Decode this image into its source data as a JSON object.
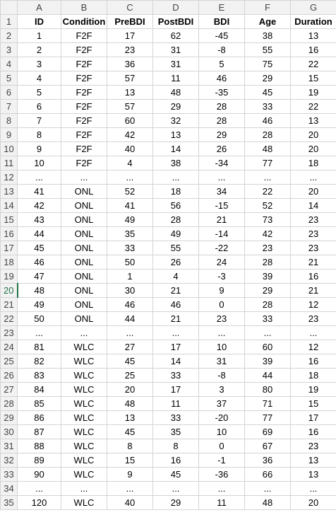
{
  "columns": [
    "A",
    "B",
    "C",
    "D",
    "E",
    "F",
    "G"
  ],
  "selected_row": "20",
  "rows": [
    {
      "num": "1",
      "cells": [
        "ID",
        "Condition",
        "PreBDI",
        "PostBDI",
        "BDI",
        "Age",
        "Duration"
      ]
    },
    {
      "num": "2",
      "cells": [
        "1",
        "F2F",
        "17",
        "62",
        "-45",
        "38",
        "13"
      ]
    },
    {
      "num": "3",
      "cells": [
        "2",
        "F2F",
        "23",
        "31",
        "-8",
        "55",
        "16"
      ]
    },
    {
      "num": "4",
      "cells": [
        "3",
        "F2F",
        "36",
        "31",
        "5",
        "75",
        "22"
      ]
    },
    {
      "num": "5",
      "cells": [
        "4",
        "F2F",
        "57",
        "11",
        "46",
        "29",
        "15"
      ]
    },
    {
      "num": "6",
      "cells": [
        "5",
        "F2F",
        "13",
        "48",
        "-35",
        "45",
        "19"
      ]
    },
    {
      "num": "7",
      "cells": [
        "6",
        "F2F",
        "57",
        "29",
        "28",
        "33",
        "22"
      ]
    },
    {
      "num": "8",
      "cells": [
        "7",
        "F2F",
        "60",
        "32",
        "28",
        "46",
        "13"
      ]
    },
    {
      "num": "9",
      "cells": [
        "8",
        "F2F",
        "42",
        "13",
        "29",
        "28",
        "20"
      ]
    },
    {
      "num": "10",
      "cells": [
        "9",
        "F2F",
        "40",
        "14",
        "26",
        "48",
        "20"
      ]
    },
    {
      "num": "11",
      "cells": [
        "10",
        "F2F",
        "4",
        "38",
        "-34",
        "77",
        "18"
      ]
    },
    {
      "num": "12",
      "cells": [
        "...",
        "...",
        "...",
        "...",
        "...",
        "...",
        "..."
      ]
    },
    {
      "num": "13",
      "cells": [
        "41",
        "ONL",
        "52",
        "18",
        "34",
        "22",
        "20"
      ]
    },
    {
      "num": "14",
      "cells": [
        "42",
        "ONL",
        "41",
        "56",
        "-15",
        "52",
        "14"
      ]
    },
    {
      "num": "15",
      "cells": [
        "43",
        "ONL",
        "49",
        "28",
        "21",
        "73",
        "23"
      ]
    },
    {
      "num": "16",
      "cells": [
        "44",
        "ONL",
        "35",
        "49",
        "-14",
        "42",
        "23"
      ]
    },
    {
      "num": "17",
      "cells": [
        "45",
        "ONL",
        "33",
        "55",
        "-22",
        "23",
        "23"
      ]
    },
    {
      "num": "18",
      "cells": [
        "46",
        "ONL",
        "50",
        "26",
        "24",
        "28",
        "21"
      ]
    },
    {
      "num": "19",
      "cells": [
        "47",
        "ONL",
        "1",
        "4",
        "-3",
        "39",
        "16"
      ]
    },
    {
      "num": "20",
      "cells": [
        "48",
        "ONL",
        "30",
        "21",
        "9",
        "29",
        "21"
      ]
    },
    {
      "num": "21",
      "cells": [
        "49",
        "ONL",
        "46",
        "46",
        "0",
        "28",
        "12"
      ]
    },
    {
      "num": "22",
      "cells": [
        "50",
        "ONL",
        "44",
        "21",
        "23",
        "33",
        "23"
      ]
    },
    {
      "num": "23",
      "cells": [
        "...",
        "...",
        "...",
        "...",
        "...",
        "...",
        "..."
      ]
    },
    {
      "num": "24",
      "cells": [
        "81",
        "WLC",
        "27",
        "17",
        "10",
        "60",
        "12"
      ]
    },
    {
      "num": "25",
      "cells": [
        "82",
        "WLC",
        "45",
        "14",
        "31",
        "39",
        "16"
      ]
    },
    {
      "num": "26",
      "cells": [
        "83",
        "WLC",
        "25",
        "33",
        "-8",
        "44",
        "18"
      ]
    },
    {
      "num": "27",
      "cells": [
        "84",
        "WLC",
        "20",
        "17",
        "3",
        "80",
        "19"
      ]
    },
    {
      "num": "28",
      "cells": [
        "85",
        "WLC",
        "48",
        "11",
        "37",
        "71",
        "15"
      ]
    },
    {
      "num": "29",
      "cells": [
        "86",
        "WLC",
        "13",
        "33",
        "-20",
        "77",
        "17"
      ]
    },
    {
      "num": "30",
      "cells": [
        "87",
        "WLC",
        "45",
        "35",
        "10",
        "69",
        "16"
      ]
    },
    {
      "num": "31",
      "cells": [
        "88",
        "WLC",
        "8",
        "8",
        "0",
        "67",
        "23"
      ]
    },
    {
      "num": "32",
      "cells": [
        "89",
        "WLC",
        "15",
        "16",
        "-1",
        "36",
        "13"
      ]
    },
    {
      "num": "33",
      "cells": [
        "90",
        "WLC",
        "9",
        "45",
        "-36",
        "66",
        "13"
      ]
    },
    {
      "num": "34",
      "cells": [
        "...",
        "...",
        "...",
        "...",
        "...",
        "...",
        "..."
      ]
    },
    {
      "num": "35",
      "cells": [
        "120",
        "WLC",
        "40",
        "29",
        "11",
        "48",
        "20"
      ]
    }
  ]
}
